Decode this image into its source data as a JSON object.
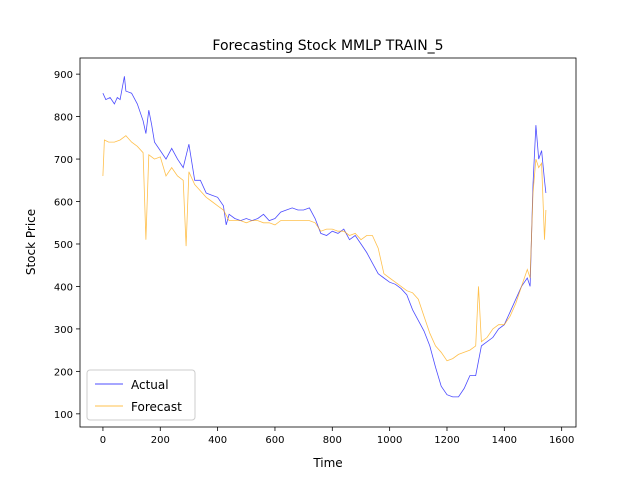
{
  "chart_data": {
    "type": "line",
    "title": "Forecasting Stock MMLP TRAIN_5",
    "x_label": "Time",
    "y_label": "Stock Price",
    "xlim": [
      -80,
      1650
    ],
    "ylim": [
      69,
      938
    ],
    "xticks": [
      0,
      200,
      400,
      600,
      800,
      1000,
      1200,
      1400,
      1600
    ],
    "yticks": [
      100,
      200,
      300,
      400,
      500,
      600,
      700,
      800,
      900
    ],
    "legend": "lower left",
    "series": [
      {
        "name": "Actual",
        "color": "#0000ff",
        "x": [
          0,
          10,
          25,
          40,
          50,
          60,
          75,
          80,
          100,
          120,
          140,
          150,
          160,
          170,
          180,
          200,
          220,
          240,
          260,
          280,
          300,
          320,
          340,
          360,
          380,
          400,
          420,
          430,
          440,
          460,
          480,
          500,
          520,
          540,
          560,
          580,
          600,
          620,
          640,
          660,
          680,
          700,
          720,
          740,
          760,
          780,
          800,
          820,
          840,
          860,
          880,
          900,
          920,
          940,
          960,
          980,
          1000,
          1020,
          1040,
          1060,
          1080,
          1100,
          1120,
          1140,
          1160,
          1180,
          1200,
          1220,
          1240,
          1260,
          1280,
          1300,
          1320,
          1340,
          1360,
          1380,
          1400,
          1420,
          1440,
          1460,
          1480,
          1490,
          1500,
          1510,
          1520,
          1530,
          1540,
          1545
        ],
        "values": [
          855,
          840,
          845,
          830,
          845,
          840,
          895,
          860,
          855,
          830,
          790,
          760,
          815,
          780,
          740,
          720,
          700,
          725,
          700,
          680,
          735,
          650,
          650,
          620,
          615,
          610,
          590,
          545,
          570,
          560,
          555,
          560,
          555,
          560,
          570,
          555,
          560,
          575,
          580,
          585,
          580,
          580,
          585,
          560,
          525,
          520,
          530,
          525,
          535,
          510,
          520,
          500,
          480,
          455,
          430,
          420,
          410,
          405,
          395,
          380,
          345,
          320,
          295,
          260,
          210,
          165,
          145,
          140,
          140,
          160,
          190,
          190,
          260,
          270,
          280,
          300,
          310,
          340,
          370,
          400,
          420,
          400,
          640,
          780,
          700,
          720,
          650,
          620
        ]
      },
      {
        "name": "Forecast",
        "color": "#ffa500",
        "x": [
          0,
          5,
          20,
          40,
          60,
          80,
          100,
          120,
          140,
          150,
          160,
          180,
          200,
          220,
          240,
          260,
          280,
          290,
          300,
          320,
          340,
          360,
          380,
          400,
          420,
          440,
          460,
          480,
          500,
          520,
          540,
          560,
          580,
          600,
          620,
          640,
          660,
          680,
          700,
          720,
          740,
          760,
          780,
          800,
          820,
          840,
          860,
          880,
          900,
          920,
          940,
          960,
          980,
          1000,
          1020,
          1040,
          1060,
          1080,
          1100,
          1120,
          1140,
          1160,
          1180,
          1200,
          1220,
          1240,
          1260,
          1280,
          1300,
          1310,
          1320,
          1340,
          1360,
          1380,
          1400,
          1420,
          1440,
          1460,
          1480,
          1490,
          1500,
          1510,
          1520,
          1530,
          1540,
          1545
        ],
        "values": [
          660,
          745,
          740,
          740,
          745,
          755,
          740,
          730,
          715,
          510,
          710,
          700,
          705,
          660,
          680,
          660,
          650,
          495,
          670,
          640,
          625,
          610,
          600,
          590,
          580,
          555,
          555,
          555,
          550,
          555,
          555,
          550,
          550,
          545,
          555,
          555,
          555,
          555,
          555,
          555,
          550,
          530,
          535,
          535,
          530,
          530,
          520,
          525,
          510,
          520,
          520,
          490,
          430,
          420,
          410,
          400,
          390,
          385,
          370,
          330,
          290,
          260,
          245,
          225,
          230,
          240,
          245,
          250,
          260,
          400,
          270,
          280,
          300,
          310,
          310,
          330,
          360,
          400,
          440,
          420,
          620,
          700,
          680,
          690,
          510,
          580
        ]
      }
    ]
  }
}
